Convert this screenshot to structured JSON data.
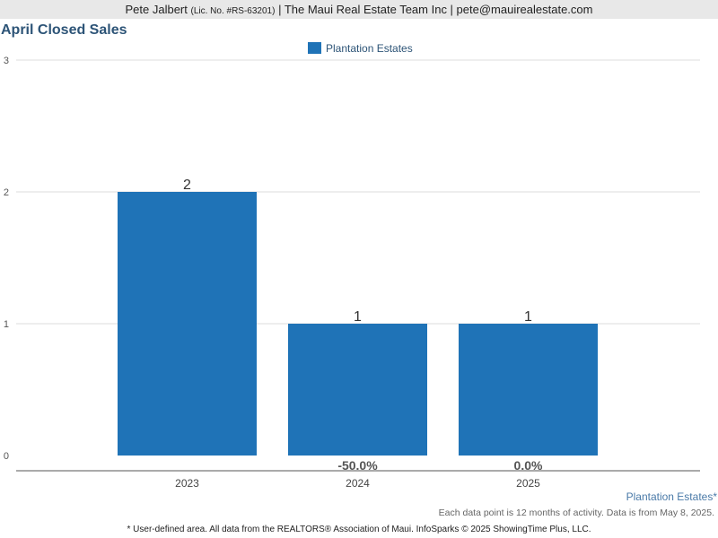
{
  "header": {
    "agent_name": "Pete Jalbert",
    "license": "(Lic. No. #RS-63201)",
    "rest": "| The Maui Real Estate Team Inc | pete@mauirealestate.com"
  },
  "chart_data": {
    "type": "bar",
    "title": "April Closed Sales",
    "categories": [
      "2023",
      "2024",
      "2025"
    ],
    "series": [
      {
        "name": "Plantation Estates",
        "values": [
          2,
          1,
          1
        ]
      }
    ],
    "data_labels": [
      "2",
      "1",
      "1"
    ],
    "change_labels": [
      "",
      "-50.0%",
      "0.0%"
    ],
    "ylim": [
      0,
      3
    ],
    "yticks": [
      0,
      1,
      2,
      3
    ],
    "grid": true,
    "legend_position": "top-center",
    "xlabel": "",
    "ylabel": ""
  },
  "colors": {
    "bar": "#1f73b7",
    "title": "#2d5477",
    "area_label": "#4a7aa8"
  },
  "notes": {
    "area_label": "Plantation Estates*",
    "data_point_note": "Each data point is 12 months of activity. Data is from May 8, 2025.",
    "footer": "* User-defined area. All data from the REALTORS® Association of Maui. InfoSparks © 2025 ShowingTime Plus, LLC."
  }
}
